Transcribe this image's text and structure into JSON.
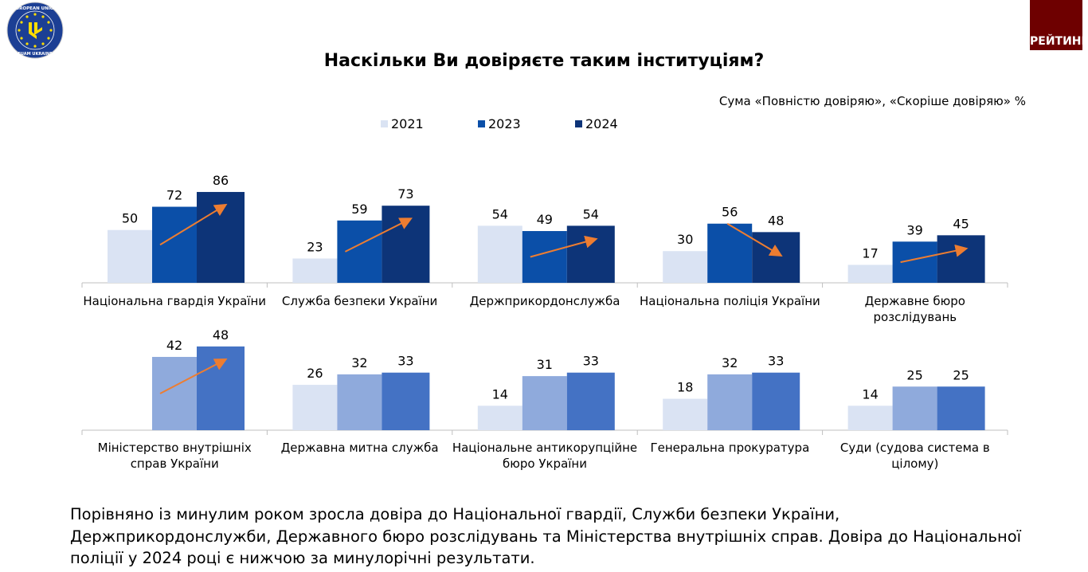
{
  "logo": {
    "text_top": "EUROPEAN UNION",
    "text_bottom": "EUAM UKRAINE"
  },
  "badge": {
    "label": "РЕЙТИНГ",
    "color": "#6e0000"
  },
  "title": "Наскільки Ви довіряєте таким інституціям?",
  "subtitle": "Сума «Повністю довіряю», «Скоріше довіряю» %",
  "legend": [
    {
      "label": "2021",
      "color": "#dae3f3"
    },
    {
      "label": "2023",
      "color": "#0b4fa8"
    },
    {
      "label": "2024",
      "color": "#0d3478"
    }
  ],
  "chart_data": [
    {
      "type": "bar",
      "series_names": [
        "2021",
        "2023",
        "2024"
      ],
      "colors": [
        "#dae3f3",
        "#0b4fa8",
        "#0d3478"
      ],
      "categories": [
        {
          "label_lines": [
            "Національна гвардія України"
          ],
          "values": [
            50,
            72,
            86
          ],
          "trend": "up"
        },
        {
          "label_lines": [
            "Служба безпеки України"
          ],
          "values": [
            23,
            59,
            73
          ],
          "trend": "up"
        },
        {
          "label_lines": [
            "Держприкордонслужба"
          ],
          "values": [
            54,
            49,
            54
          ],
          "trend": "up"
        },
        {
          "label_lines": [
            "Національна поліція України"
          ],
          "values": [
            30,
            56,
            48
          ],
          "trend": "down"
        },
        {
          "label_lines": [
            "Державне бюро",
            "розслідувань"
          ],
          "values": [
            17,
            39,
            45
          ],
          "trend": "up"
        }
      ],
      "ylim": [
        0,
        100
      ]
    },
    {
      "type": "bar",
      "series_names": [
        "2021",
        "2023",
        "2024"
      ],
      "colors": [
        "#dae3f3",
        "#8faadc",
        "#4472c4"
      ],
      "categories": [
        {
          "label_lines": [
            "Міністерство внутрішніх",
            "справ України"
          ],
          "values": [
            null,
            42,
            48
          ],
          "trend": "up"
        },
        {
          "label_lines": [
            "Державна митна служба"
          ],
          "values": [
            26,
            32,
            33
          ],
          "trend": null
        },
        {
          "label_lines": [
            "Національне антикорупційне",
            "бюро України"
          ],
          "values": [
            14,
            31,
            33
          ],
          "trend": null
        },
        {
          "label_lines": [
            "Генеральна прокуратура"
          ],
          "values": [
            18,
            32,
            33
          ],
          "trend": null
        },
        {
          "label_lines": [
            "Суди (судова система в",
            "цілому)"
          ],
          "values": [
            14,
            25,
            25
          ],
          "trend": null
        }
      ],
      "ylim": [
        0,
        55
      ]
    }
  ],
  "trend_arrow_color": "#ed7d31",
  "body_text": "Порівняно із минулим роком зросла довіра до Національної гвардії, Служби безпеки України, Держприкордонслужби, Державного бюро розслідувань та Міністерства внутрішніх справ. Довіра до Національної поліції у 2024 році є нижчою за минулорічні результати."
}
